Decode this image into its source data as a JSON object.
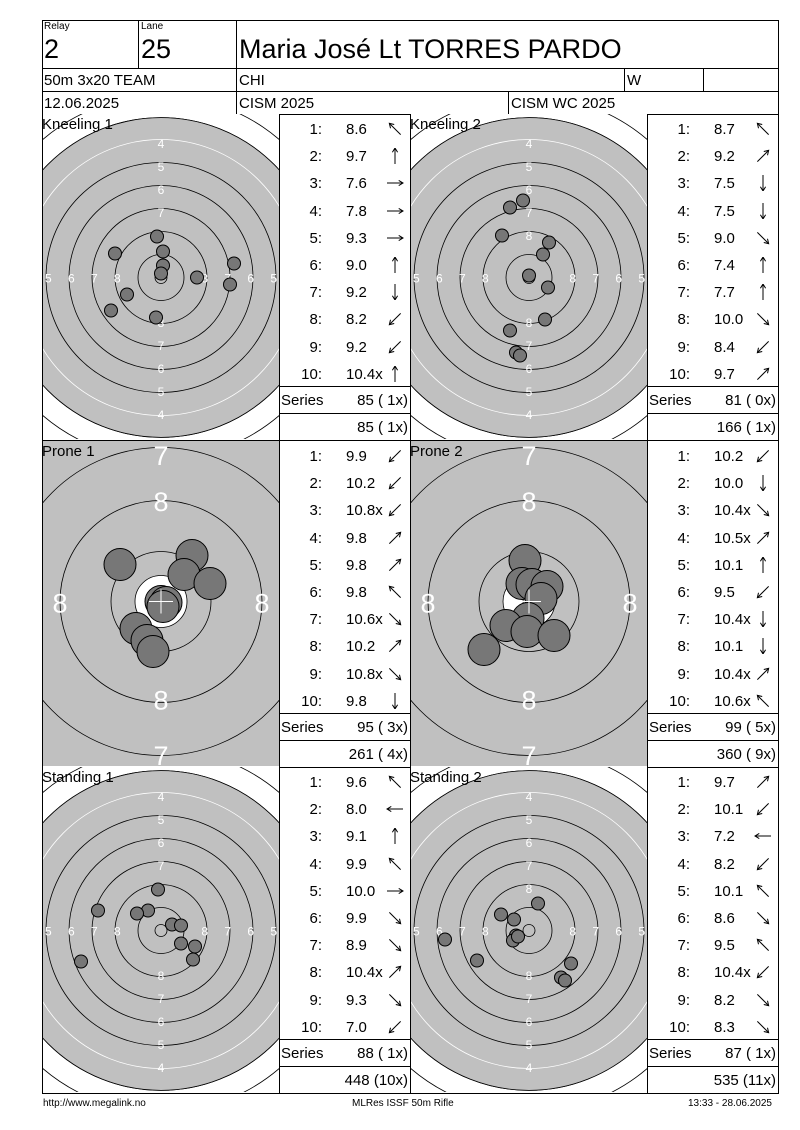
{
  "header": {
    "relay_label": "Relay",
    "relay": "2",
    "lane_label": "Lane",
    "lane": "25",
    "athlete": "Maria José Lt TORRES PARDO",
    "event": "50m 3x20 TEAM",
    "nation": "CHI",
    "gender": "W",
    "date": "12.06.2025",
    "competition": "CISM 2025",
    "match": "CISM WC 2025"
  },
  "panels": [
    {
      "label": "Kneeling 1",
      "target": "standard",
      "shots": [
        {
          "n": "1:",
          "v": "8.6",
          "dir": "nw"
        },
        {
          "n": "2:",
          "v": "9.7",
          "dir": "n"
        },
        {
          "n": "3:",
          "v": "7.6",
          "dir": "e"
        },
        {
          "n": "4:",
          "v": "7.8",
          "dir": "e"
        },
        {
          "n": "5:",
          "v": "9.3",
          "dir": "e"
        },
        {
          "n": "6:",
          "v": "9.0",
          "dir": "n"
        },
        {
          "n": "7:",
          "v": "9.2",
          "dir": "s"
        },
        {
          "n": "8:",
          "v": "8.2",
          "dir": "sw"
        },
        {
          "n": "9:",
          "v": "9.2",
          "dir": "sw"
        },
        {
          "n": "10:",
          "v": "10.4x",
          "dir": "n"
        }
      ],
      "series_label": "Series",
      "series": "85 ( 1x)",
      "total": "85 ( 1x)",
      "holes": [
        [
          -4,
          -41
        ],
        [
          2,
          -26
        ],
        [
          2,
          -12
        ],
        [
          0,
          -4
        ],
        [
          36,
          0
        ],
        [
          73,
          -14
        ],
        [
          69,
          7
        ],
        [
          -46,
          -24
        ],
        [
          -34,
          17
        ],
        [
          -50,
          33
        ],
        [
          -5,
          40
        ]
      ]
    },
    {
      "label": "Kneeling 2",
      "target": "standard",
      "shots": [
        {
          "n": "1:",
          "v": "8.7",
          "dir": "nw"
        },
        {
          "n": "2:",
          "v": "9.2",
          "dir": "ne"
        },
        {
          "n": "3:",
          "v": "7.5",
          "dir": "s"
        },
        {
          "n": "4:",
          "v": "7.5",
          "dir": "s"
        },
        {
          "n": "5:",
          "v": "9.0",
          "dir": "se"
        },
        {
          "n": "6:",
          "v": "7.4",
          "dir": "n"
        },
        {
          "n": "7:",
          "v": "7.7",
          "dir": "n"
        },
        {
          "n": "8:",
          "v": "10.0",
          "dir": "se"
        },
        {
          "n": "9:",
          "v": "8.4",
          "dir": "sw"
        },
        {
          "n": "10:",
          "v": "9.7",
          "dir": "ne"
        }
      ],
      "series_label": "Series",
      "series": "81 ( 0x)",
      "total": "166 ( 1x)",
      "holes": [
        [
          -6,
          -77
        ],
        [
          -19,
          -70
        ],
        [
          -27,
          -42
        ],
        [
          20,
          -35
        ],
        [
          14,
          -23
        ],
        [
          0,
          -2
        ],
        [
          19,
          10
        ],
        [
          16,
          42
        ],
        [
          -19,
          53
        ],
        [
          -13,
          75
        ],
        [
          -9,
          78
        ]
      ]
    },
    {
      "label": "Prone 1",
      "target": "zoom",
      "shots": [
        {
          "n": "1:",
          "v": "9.9",
          "dir": "sw"
        },
        {
          "n": "2:",
          "v": "10.2",
          "dir": "sw"
        },
        {
          "n": "3:",
          "v": "10.8x",
          "dir": "sw"
        },
        {
          "n": "4:",
          "v": "9.8",
          "dir": "ne"
        },
        {
          "n": "5:",
          "v": "9.8",
          "dir": "ne"
        },
        {
          "n": "6:",
          "v": "9.8",
          "dir": "nw"
        },
        {
          "n": "7:",
          "v": "10.6x",
          "dir": "se"
        },
        {
          "n": "8:",
          "v": "10.2",
          "dir": "ne"
        },
        {
          "n": "9:",
          "v": "10.8x",
          "dir": "se"
        },
        {
          "n": "10:",
          "v": "9.8",
          "dir": "s"
        }
      ],
      "series_label": "Series",
      "series": "95 ( 3x)",
      "total": "261 ( 4x)",
      "holes": [
        [
          -41,
          -37
        ],
        [
          31,
          -46
        ],
        [
          23,
          -27
        ],
        [
          49,
          -18
        ],
        [
          0,
          0
        ],
        [
          5,
          1
        ],
        [
          2,
          5
        ],
        [
          -25,
          27
        ],
        [
          -14,
          39
        ],
        [
          -8,
          50
        ]
      ]
    },
    {
      "label": "Prone 2",
      "target": "zoom",
      "shots": [
        {
          "n": "1:",
          "v": "10.2",
          "dir": "sw"
        },
        {
          "n": "2:",
          "v": "10.0",
          "dir": "s"
        },
        {
          "n": "3:",
          "v": "10.4x",
          "dir": "se"
        },
        {
          "n": "4:",
          "v": "10.5x",
          "dir": "ne"
        },
        {
          "n": "5:",
          "v": "10.1",
          "dir": "n"
        },
        {
          "n": "6:",
          "v": "9.5",
          "dir": "sw"
        },
        {
          "n": "7:",
          "v": "10.4x",
          "dir": "s"
        },
        {
          "n": "8:",
          "v": "10.1",
          "dir": "s"
        },
        {
          "n": "9:",
          "v": "10.4x",
          "dir": "ne"
        },
        {
          "n": "10:",
          "v": "10.6x",
          "dir": "nw"
        }
      ],
      "series_label": "Series",
      "series": "99 ( 5x)",
      "total": "360 ( 9x)",
      "holes": [
        [
          -4,
          -41
        ],
        [
          -7,
          -18
        ],
        [
          3,
          -17
        ],
        [
          18,
          -15
        ],
        [
          12,
          -3
        ],
        [
          -1,
          17
        ],
        [
          -23,
          24
        ],
        [
          -2,
          30
        ],
        [
          25,
          34
        ],
        [
          -45,
          48
        ]
      ]
    },
    {
      "label": "Standing 1",
      "target": "standard",
      "shots": [
        {
          "n": "1:",
          "v": "9.6",
          "dir": "nw"
        },
        {
          "n": "2:",
          "v": "8.0",
          "dir": "w"
        },
        {
          "n": "3:",
          "v": "9.1",
          "dir": "n"
        },
        {
          "n": "4:",
          "v": "9.9",
          "dir": "nw"
        },
        {
          "n": "5:",
          "v": "10.0",
          "dir": "e"
        },
        {
          "n": "6:",
          "v": "9.9",
          "dir": "se"
        },
        {
          "n": "7:",
          "v": "8.9",
          "dir": "se"
        },
        {
          "n": "8:",
          "v": "10.4x",
          "dir": "ne"
        },
        {
          "n": "9:",
          "v": "9.3",
          "dir": "se"
        },
        {
          "n": "10:",
          "v": "7.0",
          "dir": "sw"
        }
      ],
      "series_label": "Series",
      "series": "88 ( 1x)",
      "total": "448 (10x)",
      "holes": [
        [
          -3,
          -41
        ],
        [
          -13,
          -20
        ],
        [
          -24,
          -17
        ],
        [
          -63,
          -20
        ],
        [
          11,
          -6
        ],
        [
          20,
          -5
        ],
        [
          20,
          13
        ],
        [
          34,
          16
        ],
        [
          32,
          29
        ],
        [
          -80,
          31
        ]
      ]
    },
    {
      "label": "Standing 2",
      "target": "standard",
      "shots": [
        {
          "n": "1:",
          "v": "9.7",
          "dir": "ne"
        },
        {
          "n": "2:",
          "v": "10.1",
          "dir": "sw"
        },
        {
          "n": "3:",
          "v": "7.2",
          "dir": "w"
        },
        {
          "n": "4:",
          "v": "8.2",
          "dir": "sw"
        },
        {
          "n": "5:",
          "v": "10.1",
          "dir": "nw"
        },
        {
          "n": "6:",
          "v": "8.6",
          "dir": "se"
        },
        {
          "n": "7:",
          "v": "9.5",
          "dir": "nw"
        },
        {
          "n": "8:",
          "v": "10.4x",
          "dir": "sw"
        },
        {
          "n": "9:",
          "v": "8.2",
          "dir": "se"
        },
        {
          "n": "10:",
          "v": "8.3",
          "dir": "se"
        }
      ],
      "series_label": "Series",
      "series": "87 ( 1x)",
      "total": "535 (11x)",
      "holes": [
        [
          9,
          -27
        ],
        [
          -28,
          -16
        ],
        [
          -15,
          -11
        ],
        [
          -13,
          5
        ],
        [
          -16,
          10
        ],
        [
          -11,
          6
        ],
        [
          -84,
          9
        ],
        [
          -52,
          30
        ],
        [
          42,
          33
        ],
        [
          32,
          47
        ],
        [
          36,
          50
        ]
      ]
    }
  ],
  "footer": {
    "url": "http://www.megalink.no",
    "software": "MLRes ISSF 50m Rifle",
    "timestamp": "13:33 - 28.06.2025"
  }
}
